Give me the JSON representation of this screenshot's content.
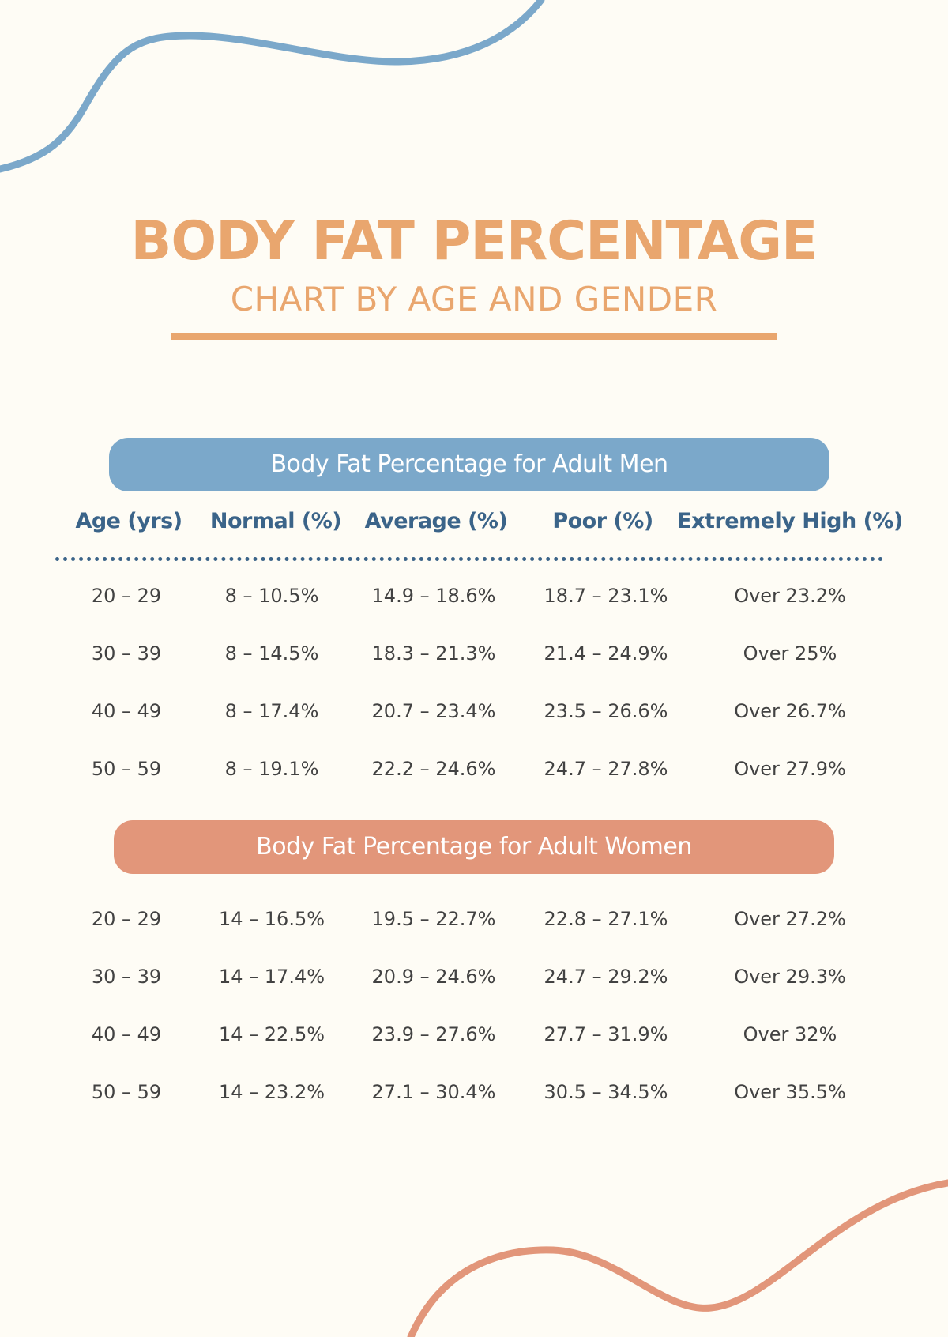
{
  "colors": {
    "background": "#fefcf5",
    "title_orange": "#e9a66e",
    "men_blue": "#7ba8ca",
    "women_coral": "#e2967a",
    "header_navy": "#3b6489",
    "body_text": "#424242"
  },
  "title": {
    "main": "BODY FAT PERCENTAGE",
    "sub": "CHART BY AGE AND GENDER"
  },
  "men": {
    "banner": "Body Fat Percentage for Adult Men",
    "headers": [
      "Age (yrs)",
      "Normal (%)",
      "Average (%)",
      "Poor (%)",
      "Extremely High (%)"
    ],
    "rows": [
      [
        "20 – 29",
        "8 – 10.5%",
        "14.9 – 18.6%",
        "18.7 – 23.1%",
        "Over 23.2%"
      ],
      [
        "30 – 39",
        "8 – 14.5%",
        "18.3 – 21.3%",
        "21.4 – 24.9%",
        "Over 25%"
      ],
      [
        "40 – 49",
        "8 – 17.4%",
        "20.7 – 23.4%",
        "23.5 – 26.6%",
        "Over 26.7%"
      ],
      [
        "50 – 59",
        "8 – 19.1%",
        "22.2 – 24.6%",
        "24.7 – 27.8%",
        "Over 27.9%"
      ]
    ]
  },
  "women": {
    "banner": "Body Fat Percentage for Adult Women",
    "rows": [
      [
        "20 – 29",
        "14 – 16.5%",
        "19.5 – 22.7%",
        "22.8 – 27.1%",
        "Over 27.2%"
      ],
      [
        "30 – 39",
        "14 – 17.4%",
        "20.9 – 24.6%",
        "24.7 – 29.2%",
        "Over 29.3%"
      ],
      [
        "40 – 49",
        "14 – 22.5%",
        "23.9 – 27.6%",
        "27.7 – 31.9%",
        "Over 32%"
      ],
      [
        "50 – 59",
        "14 – 23.2%",
        "27.1 – 30.4%",
        "30.5 – 34.5%",
        "Over 35.5%"
      ]
    ]
  }
}
